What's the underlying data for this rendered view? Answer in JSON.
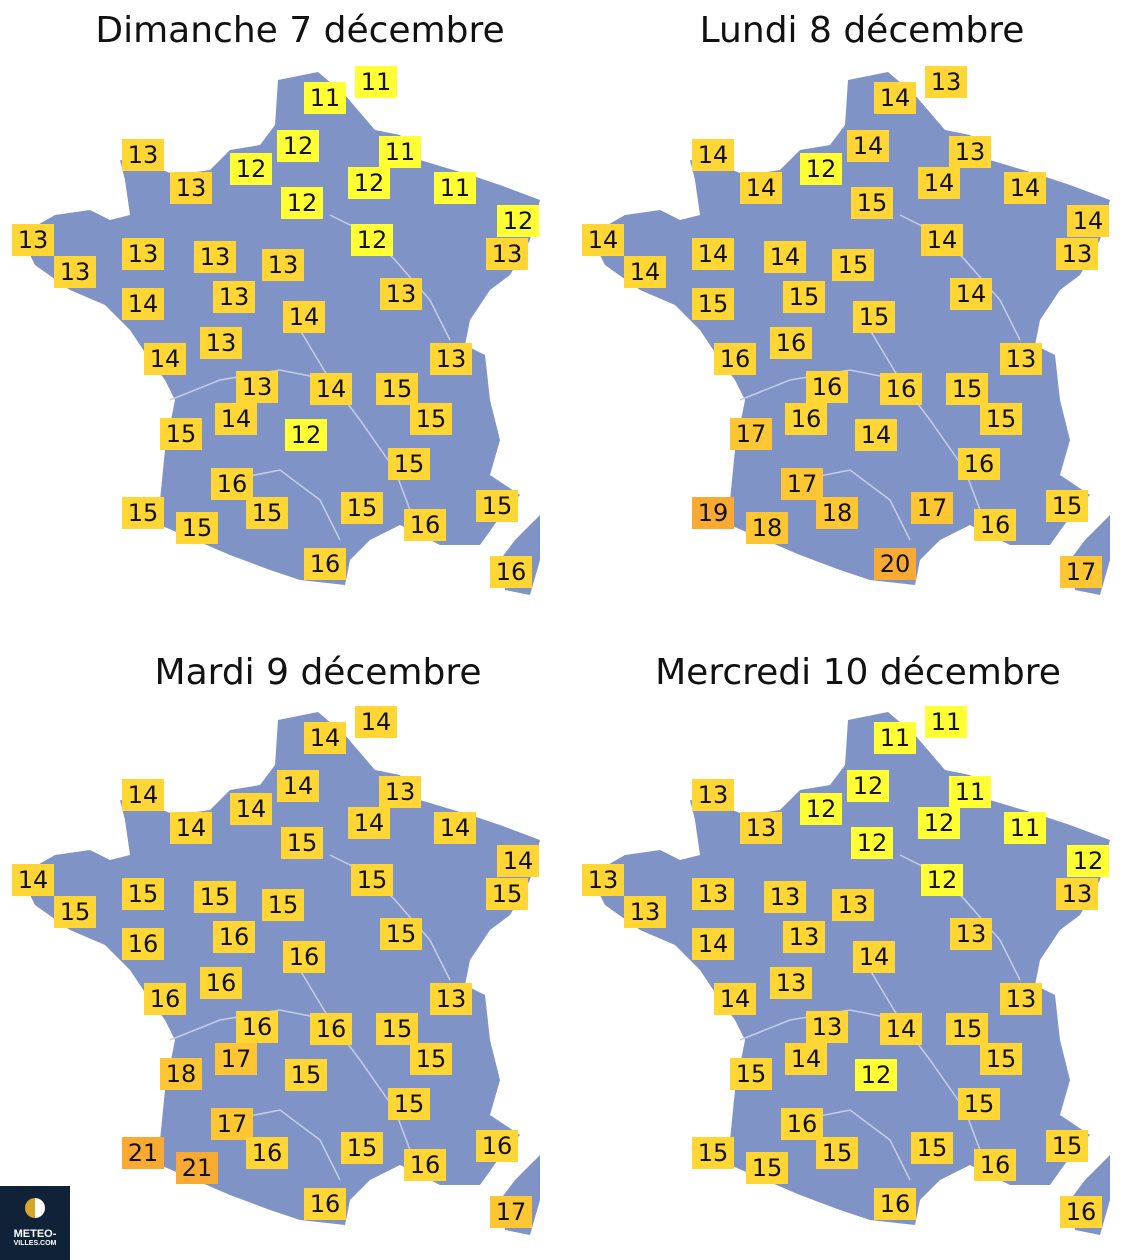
{
  "colors": {
    "land": "#8093c6",
    "river": "#c5cde8",
    "cold": "#ffff33",
    "mild": "#ffd633",
    "warm": "#ffc633",
    "hot": "#f8aa33"
  },
  "panels": [
    {
      "title": "Dimanche 7 décembre",
      "values": [
        11,
        11,
        13,
        12,
        11,
        13,
        12,
        12,
        11,
        12,
        12,
        13,
        12,
        13,
        13,
        13,
        13,
        13,
        13,
        14,
        13,
        14,
        13,
        14,
        13,
        13,
        14,
        15,
        14,
        15,
        15,
        12,
        15,
        16,
        15,
        15,
        15,
        15,
        16,
        15,
        16,
        16
      ]
    },
    {
      "title": "Lundi 8 décembre",
      "values": [
        13,
        14,
        14,
        14,
        13,
        14,
        12,
        14,
        14,
        15,
        14,
        14,
        14,
        13,
        14,
        14,
        14,
        15,
        14,
        15,
        15,
        15,
        16,
        16,
        13,
        16,
        16,
        15,
        16,
        15,
        17,
        14,
        16,
        17,
        19,
        18,
        18,
        17,
        16,
        15,
        20,
        17
      ]
    },
    {
      "title": "Mardi 9 décembre",
      "values": [
        14,
        14,
        14,
        14,
        13,
        14,
        14,
        14,
        14,
        15,
        14,
        14,
        15,
        15,
        15,
        15,
        15,
        15,
        15,
        16,
        16,
        16,
        16,
        16,
        13,
        16,
        16,
        15,
        17,
        15,
        18,
        15,
        15,
        17,
        21,
        21,
        16,
        15,
        16,
        16,
        16,
        17
      ]
    },
    {
      "title": "Mercredi 10 décembre",
      "values": [
        11,
        11,
        13,
        12,
        11,
        13,
        12,
        12,
        11,
        12,
        12,
        13,
        12,
        13,
        13,
        13,
        13,
        13,
        13,
        14,
        13,
        14,
        13,
        14,
        13,
        13,
        14,
        15,
        14,
        15,
        15,
        12,
        15,
        16,
        15,
        15,
        15,
        15,
        16,
        15,
        16,
        16
      ]
    }
  ],
  "logo": {
    "line1": "METEO-",
    "line2": "VILLES.COM"
  }
}
